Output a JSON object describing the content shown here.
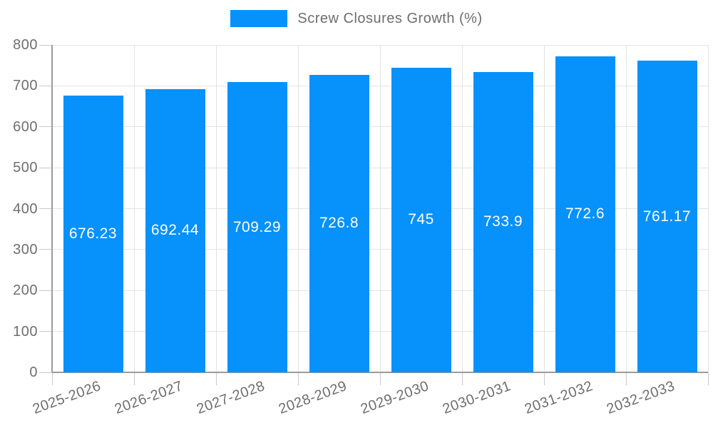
{
  "legend": {
    "label": "Screw Closures Growth (%)",
    "swatch_color": "#0791fb"
  },
  "chart_data": {
    "type": "bar",
    "title": "",
    "categories": [
      "2025-2026",
      "2026-2027",
      "2027-2028",
      "2028-2029",
      "2029-2030",
      "2030-2031",
      "2031-2032",
      "2032-2033"
    ],
    "series": [
      {
        "name": "Screw Closures Growth (%)",
        "values": [
          676.23,
          692.44,
          709.29,
          726.8,
          745,
          733.9,
          772.6,
          761.17
        ],
        "value_labels": [
          "676.23",
          "692.44",
          "709.29",
          "726.8",
          "745",
          "733.9",
          "772.6",
          "761.17"
        ],
        "color": "#0791fb"
      }
    ],
    "xlabel": "",
    "ylabel": "",
    "ylim": [
      0,
      800
    ],
    "yticks": [
      0,
      100,
      200,
      300,
      400,
      500,
      600,
      700,
      800
    ],
    "grid": true,
    "legend_position": "top",
    "value_label_position": "center-of-bar",
    "value_label_color": "#ffffff"
  },
  "colors": {
    "background": "#ffffff",
    "bar": "#0791fb",
    "gridline": "#e3e3e3",
    "tick": "#c9c9c9",
    "axis": "#9b9b9b",
    "text": "#6e6e6e"
  }
}
